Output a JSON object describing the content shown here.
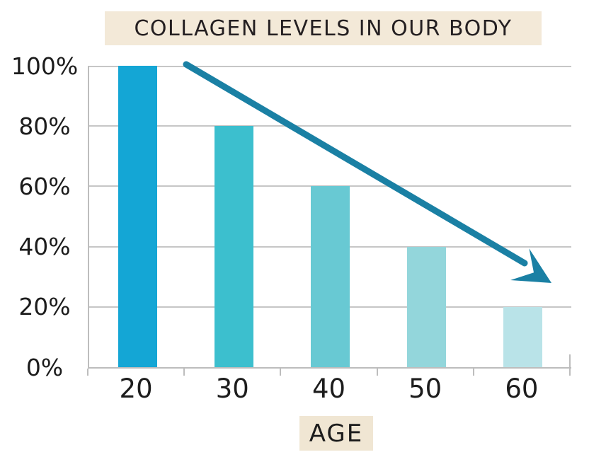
{
  "title": {
    "text": "COLLAGEN LEVELS IN OUR BODY",
    "bg": "#f3e9d8"
  },
  "x_axis_title": {
    "text": "AGE",
    "bg": "#f0e6d3"
  },
  "chart_data": {
    "type": "bar",
    "title": "COLLAGEN LEVELS IN OUR BODY",
    "categories": [
      "20",
      "30",
      "40",
      "50",
      "60"
    ],
    "values": [
      100,
      80,
      60,
      40,
      20
    ],
    "xlabel": "AGE",
    "ylabel": "",
    "ylim": [
      0,
      100
    ],
    "ytick_values": [
      100,
      80,
      60,
      40,
      20,
      0
    ],
    "ytick_labels": [
      "100%",
      "80%",
      "60%",
      "40%",
      "20%",
      "0%"
    ],
    "grid": true,
    "legend": false,
    "bar_colors": [
      "#14a6d5",
      "#3cbfce",
      "#68c9d3",
      "#93d6db",
      "#b9e3e8"
    ],
    "annotation": {
      "type": "arrow",
      "meaning": "downward trend: collagen declines with age",
      "color": "#1a80a4"
    }
  },
  "colors": {
    "gridline": "#c6c6c6",
    "axis": "#bdbdbd",
    "tick": "#bdbdbd",
    "text": "#1c1c1c",
    "arrow": "#1a80a4"
  }
}
